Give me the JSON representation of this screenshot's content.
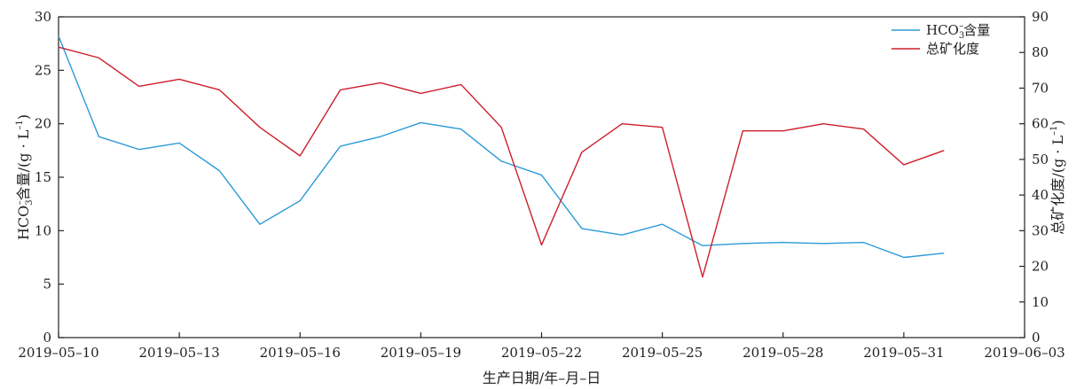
{
  "chart_data": {
    "type": "line",
    "xlabel": "生产日期/年–月–日",
    "ylabel_left": "HCO3⁻含量/(g · L⁻¹)",
    "ylabel_left_parts": {
      "pre": "HCO",
      "sub": "3",
      "sup": "–",
      "post": "含量/(g · L",
      "unit_sup": "–1",
      "close": ")"
    },
    "ylabel_right": "总矿化度/(g · L⁻¹)",
    "ylabel_right_parts": {
      "pre": "总矿化度/(g · L",
      "unit_sup": "–1",
      "close": ")"
    },
    "x_range": [
      "2019-05-10",
      "2019-06-03"
    ],
    "x_ticks": [
      "2019-05-10",
      "2019-05-13",
      "2019-05-16",
      "2019-05-19",
      "2019-05-22",
      "2019-05-25",
      "2019-05-28",
      "2019-05-31",
      "2019-06-03"
    ],
    "x_tick_labels": [
      "2019–05–10",
      "2019–05–13",
      "2019–05–16",
      "2019–05–19",
      "2019–05–22",
      "2019–05–25",
      "2019–05–28",
      "2019–05–31",
      "2019–06–03"
    ],
    "ylim_left": [
      0,
      30
    ],
    "yticks_left": [
      0,
      5,
      10,
      15,
      20,
      25,
      30
    ],
    "ylim_right": [
      0,
      90
    ],
    "yticks_right": [
      0,
      10,
      20,
      30,
      40,
      50,
      60,
      70,
      80,
      90
    ],
    "legend_position": "top-right",
    "grid": false,
    "series": [
      {
        "name": "HCO3⁻含量",
        "legend_parts": {
          "pre": "HCO",
          "sub": "3",
          "sup": "–",
          "post": "含量"
        },
        "axis": "left",
        "color": "#2b9bd8",
        "x": [
          "2019-05-10",
          "2019-05-11",
          "2019-05-12",
          "2019-05-13",
          "2019-05-14",
          "2019-05-15",
          "2019-05-16",
          "2019-05-17",
          "2019-05-18",
          "2019-05-19",
          "2019-05-20",
          "2019-05-21",
          "2019-05-22",
          "2019-05-23",
          "2019-05-24",
          "2019-05-25",
          "2019-05-26",
          "2019-05-27",
          "2019-05-28",
          "2019-05-29",
          "2019-05-30",
          "2019-05-31",
          "2019-06-01"
        ],
        "y": [
          28.2,
          18.8,
          17.6,
          18.2,
          15.6,
          10.6,
          12.8,
          17.9,
          18.8,
          20.1,
          19.5,
          16.5,
          15.2,
          10.2,
          9.6,
          10.6,
          8.6,
          8.8,
          8.9,
          8.8,
          8.9,
          7.5,
          7.9
        ]
      },
      {
        "name": "总矿化度",
        "axis": "right",
        "color": "#cc1f2a",
        "x": [
          "2019-05-10",
          "2019-05-11",
          "2019-05-12",
          "2019-05-13",
          "2019-05-14",
          "2019-05-15",
          "2019-05-16",
          "2019-05-17",
          "2019-05-18",
          "2019-05-19",
          "2019-05-20",
          "2019-05-21",
          "2019-05-22",
          "2019-05-23",
          "2019-05-24",
          "2019-05-25",
          "2019-05-26",
          "2019-05-27",
          "2019-05-28",
          "2019-05-29",
          "2019-05-30",
          "2019-05-31",
          "2019-06-01"
        ],
        "y": [
          81.5,
          78.5,
          70.5,
          72.5,
          69.5,
          59,
          51,
          69.5,
          71.5,
          68.5,
          71,
          59,
          26,
          52,
          60,
          59,
          17,
          58,
          58,
          60,
          58.5,
          48.5,
          52.5
        ]
      }
    ]
  }
}
